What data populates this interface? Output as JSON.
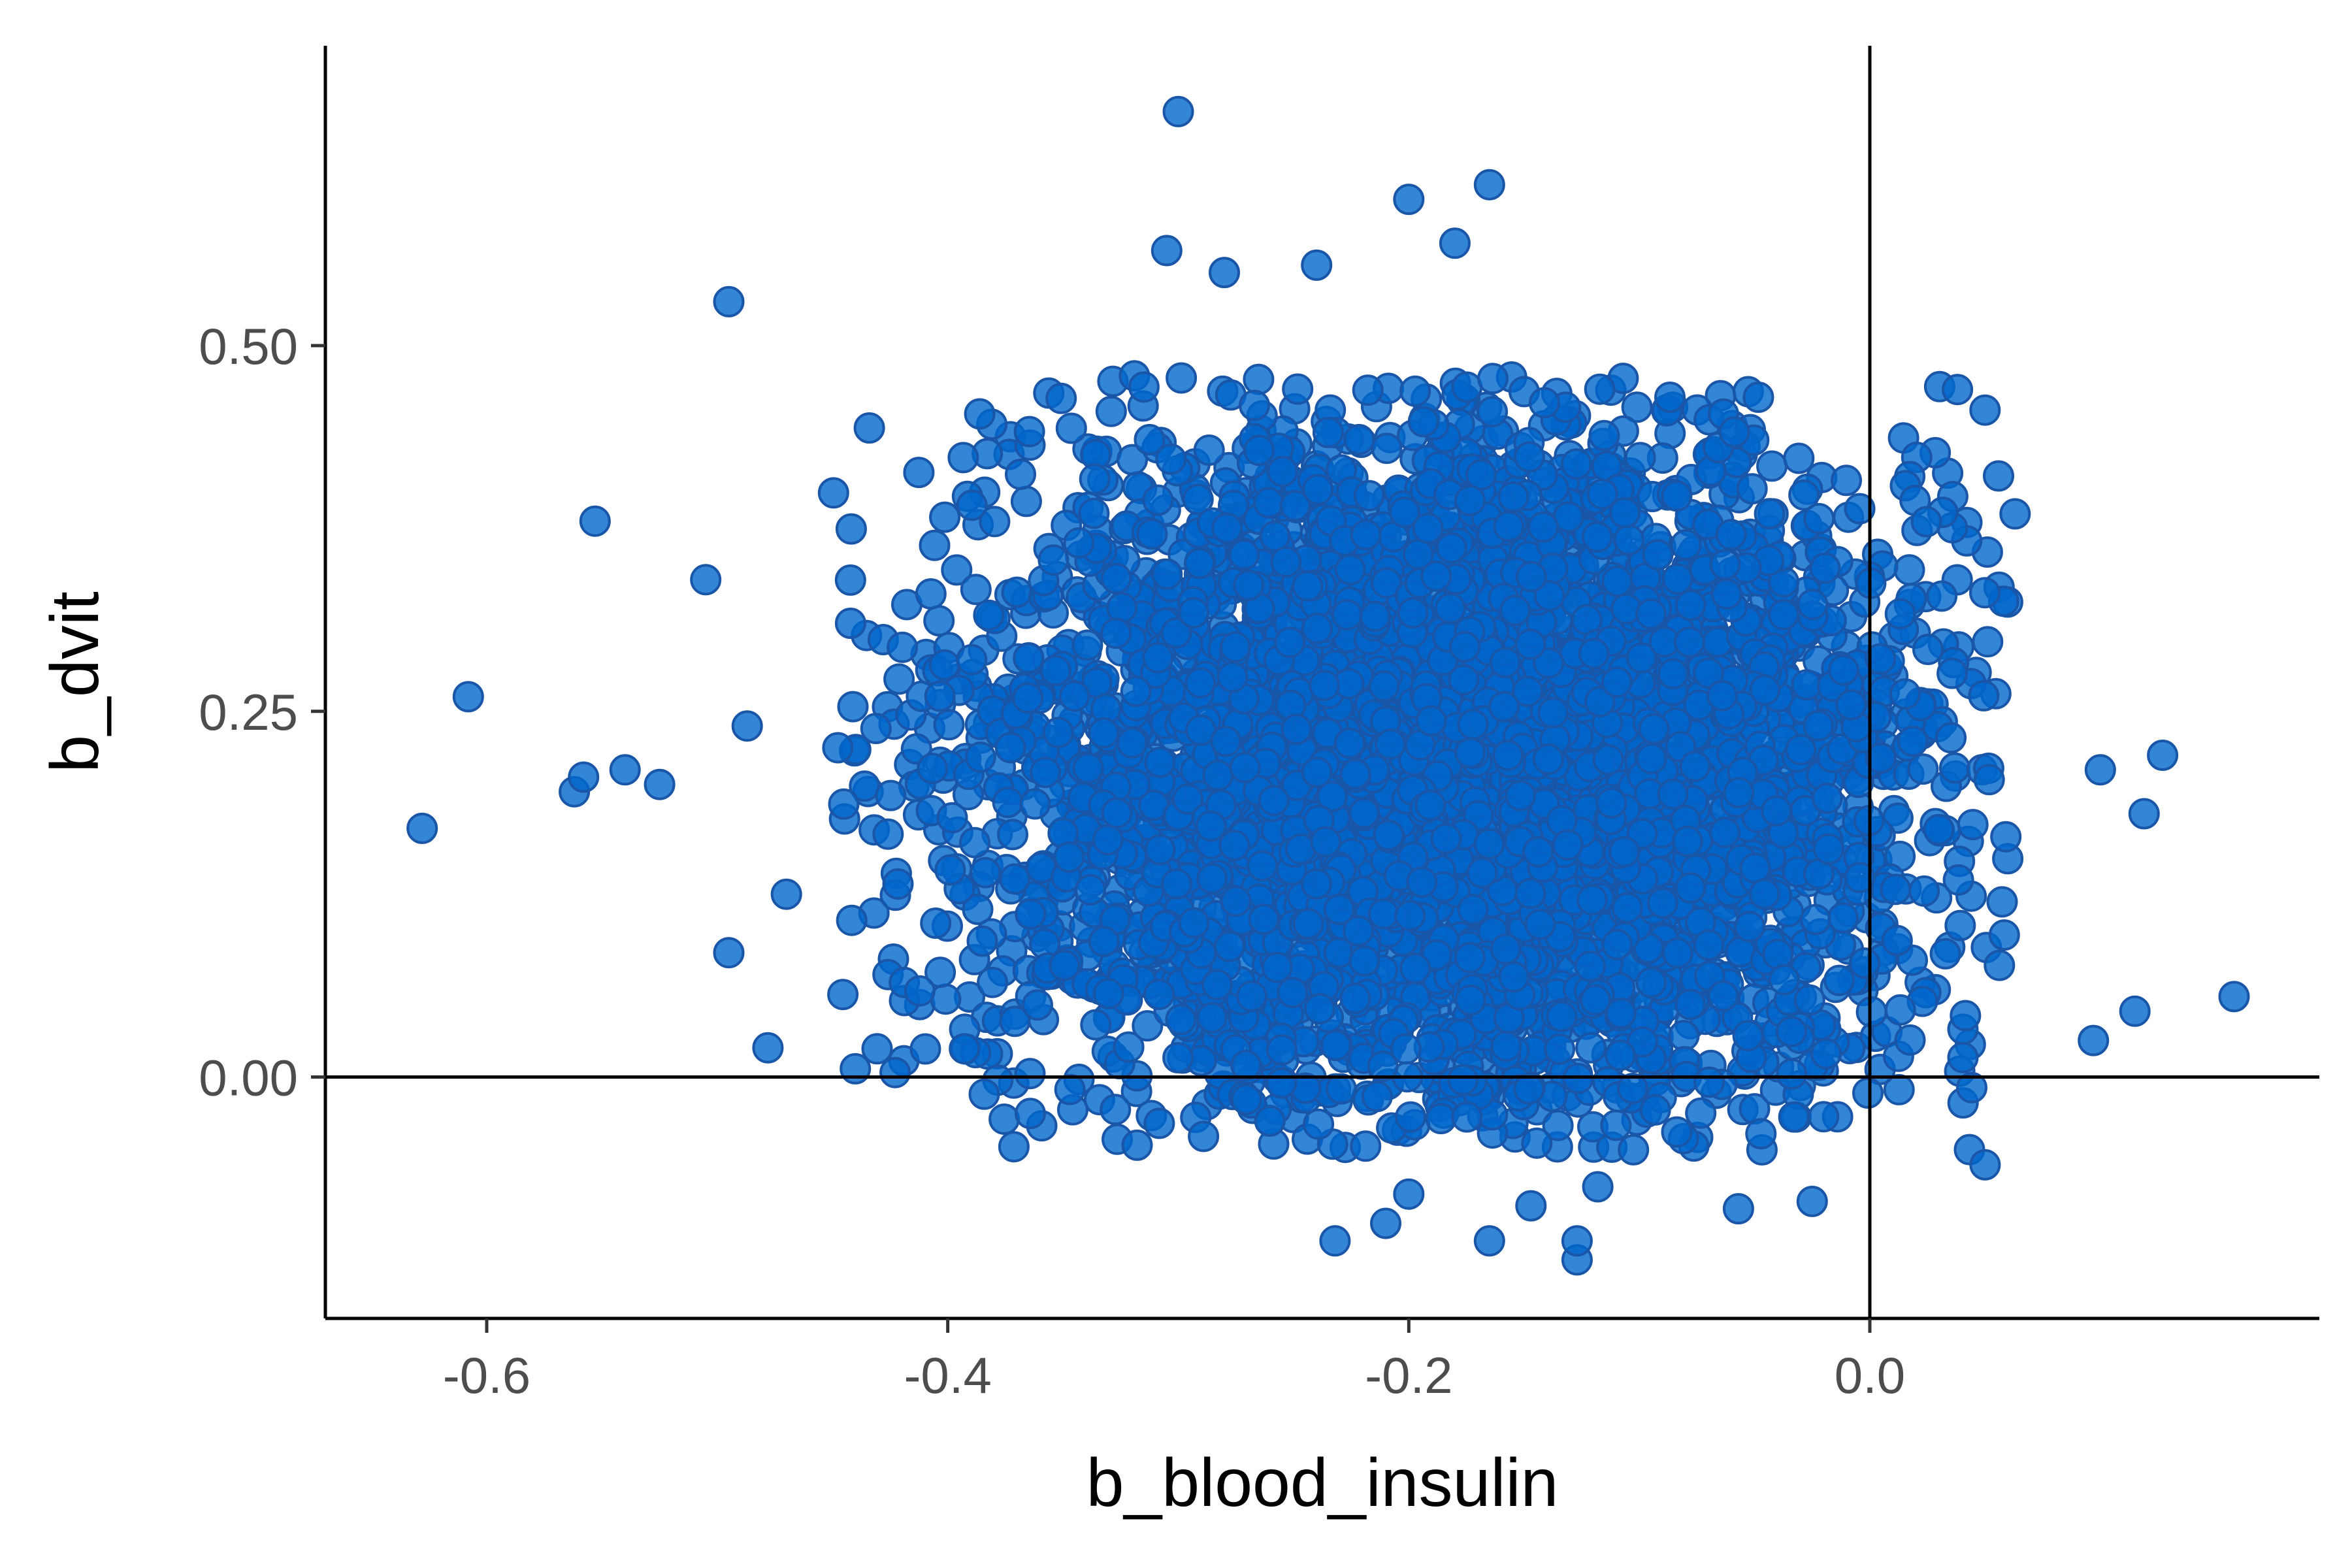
{
  "chart_data": {
    "type": "scatter",
    "title": "",
    "xlabel": "b_blood_insulin",
    "ylabel": "b_dvit",
    "xlim": [
      -0.67,
      0.195
    ],
    "ylim": [
      -0.165,
      0.705
    ],
    "x_ticks": [
      -0.6,
      -0.4,
      -0.2,
      0.0
    ],
    "x_tick_labels": [
      "-0.6",
      "-0.4",
      "-0.2",
      "0.0"
    ],
    "y_ticks": [
      0.0,
      0.25,
      0.5
    ],
    "y_tick_labels": [
      "0.00",
      "0.25",
      "0.50"
    ],
    "reference_lines": {
      "x": 0.0,
      "y": 0.0
    },
    "grid": false,
    "legend": "none",
    "point_fill": "#0066cc",
    "point_stroke": "#1a56a8",
    "point_opacity": 0.8,
    "cloud_summary": {
      "n_points": 5000,
      "x_mean": -0.18,
      "x_sd": 0.105,
      "y_mean": 0.21,
      "y_sd": 0.12,
      "x_range": [
        -0.63,
        0.158
      ],
      "y_range": [
        -0.13,
        0.66
      ],
      "core_x_range": [
        -0.45,
        0.06
      ],
      "core_y_range": [
        -0.05,
        0.48
      ]
    },
    "outliers": [
      [
        -0.3,
        0.66
      ],
      [
        -0.165,
        0.61
      ],
      [
        -0.2,
        0.6
      ],
      [
        -0.305,
        0.565
      ],
      [
        -0.18,
        0.57
      ],
      [
        -0.495,
        0.53
      ],
      [
        -0.28,
        0.55
      ],
      [
        -0.24,
        0.555
      ],
      [
        -0.608,
        0.26
      ],
      [
        -0.628,
        0.17
      ],
      [
        -0.553,
        0.38
      ],
      [
        -0.54,
        0.21
      ],
      [
        -0.562,
        0.195
      ],
      [
        -0.558,
        0.205
      ],
      [
        -0.525,
        0.2
      ],
      [
        -0.487,
        0.24
      ],
      [
        -0.47,
        0.125
      ],
      [
        -0.495,
        0.085
      ],
      [
        -0.478,
        0.02
      ],
      [
        -0.505,
        0.34
      ],
      [
        0.158,
        0.055
      ],
      [
        0.127,
        0.22
      ],
      [
        0.115,
        0.045
      ],
      [
        0.119,
        0.18
      ],
      [
        0.1,
        0.21
      ],
      [
        0.097,
        0.025
      ],
      [
        0.063,
        0.385
      ],
      [
        0.038,
        0.47
      ],
      [
        -0.232,
        -0.112
      ],
      [
        -0.21,
        -0.1
      ],
      [
        -0.165,
        -0.112
      ],
      [
        -0.127,
        -0.125
      ],
      [
        -0.127,
        -0.112
      ],
      [
        -0.147,
        -0.088
      ],
      [
        -0.118,
        -0.075
      ],
      [
        -0.057,
        -0.09
      ],
      [
        -0.025,
        -0.085
      ],
      [
        -0.2,
        -0.08
      ],
      [
        0.05,
        -0.06
      ]
    ]
  }
}
